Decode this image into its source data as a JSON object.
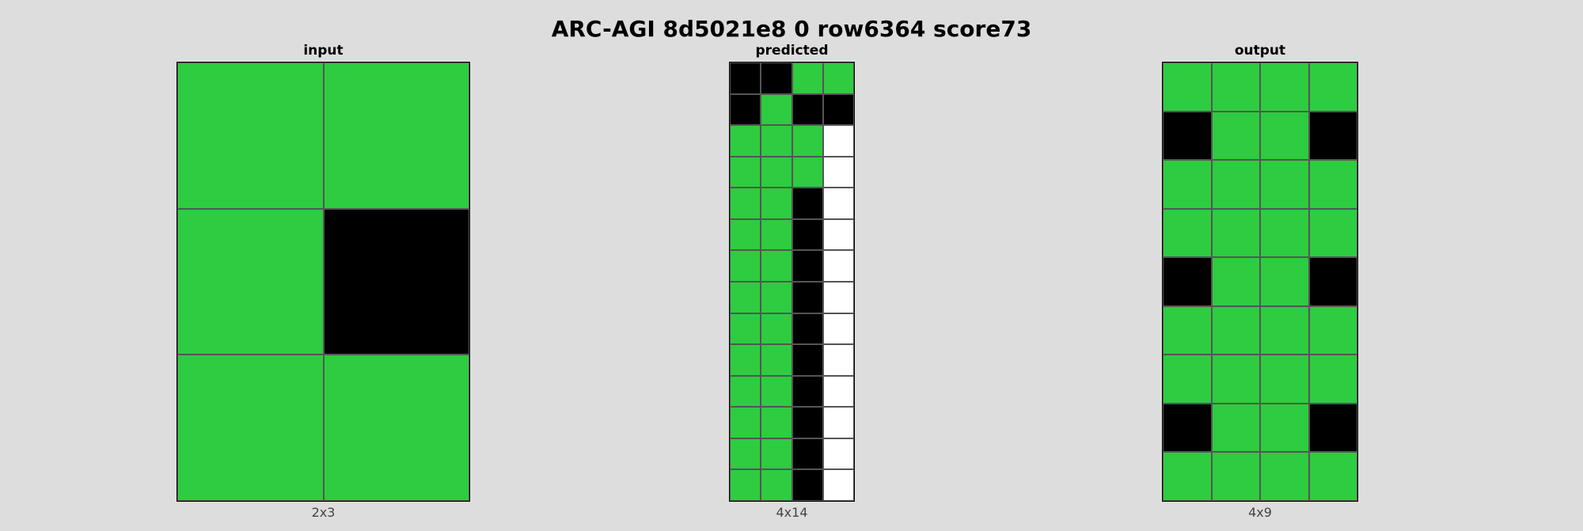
{
  "title": "ARC-AGI 8d5021e8 0 row6364 score73",
  "palette": {
    "0": "#000000",
    "3": "#2ECC40",
    "w": "#FFFFFF"
  },
  "panels": [
    {
      "label": "input",
      "dims": "2x3",
      "grid": [
        [
          3,
          3
        ],
        [
          3,
          0
        ],
        [
          3,
          3
        ]
      ]
    },
    {
      "label": "predicted",
      "dims": "4x14",
      "grid": [
        [
          0,
          0,
          3,
          3
        ],
        [
          0,
          3,
          0,
          0
        ],
        [
          3,
          3,
          3,
          "w"
        ],
        [
          3,
          3,
          3,
          "w"
        ],
        [
          3,
          3,
          0,
          "w"
        ],
        [
          3,
          3,
          0,
          "w"
        ],
        [
          3,
          3,
          0,
          "w"
        ],
        [
          3,
          3,
          0,
          "w"
        ],
        [
          3,
          3,
          0,
          "w"
        ],
        [
          3,
          3,
          0,
          "w"
        ],
        [
          3,
          3,
          0,
          "w"
        ],
        [
          3,
          3,
          0,
          "w"
        ],
        [
          3,
          3,
          0,
          "w"
        ],
        [
          3,
          3,
          0,
          "w"
        ]
      ]
    },
    {
      "label": "output",
      "dims": "4x9",
      "grid": [
        [
          3,
          3,
          3,
          3
        ],
        [
          0,
          3,
          3,
          0
        ],
        [
          3,
          3,
          3,
          3
        ],
        [
          3,
          3,
          3,
          3
        ],
        [
          0,
          3,
          3,
          0
        ],
        [
          3,
          3,
          3,
          3
        ],
        [
          3,
          3,
          3,
          3
        ],
        [
          0,
          3,
          3,
          0
        ],
        [
          3,
          3,
          3,
          3
        ]
      ]
    }
  ]
}
